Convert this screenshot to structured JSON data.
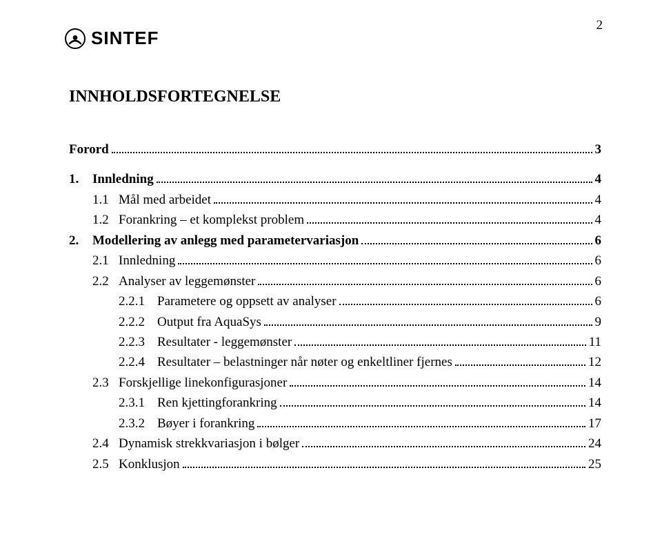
{
  "page_number_top": "2",
  "brand": {
    "name": "SINTEF"
  },
  "toc_title": "INNHOLDSFORTEGNELSE",
  "toc": [
    {
      "level": 0,
      "bold": true,
      "num": "",
      "label": "Forord",
      "page": "3",
      "extra_class": "toc-forord"
    },
    {
      "level": 0,
      "bold": true,
      "num": "1.",
      "label": "Innledning",
      "page": "4"
    },
    {
      "level": 1,
      "bold": false,
      "num": "1.1",
      "label": "Mål med arbeidet",
      "page": "4"
    },
    {
      "level": 1,
      "bold": false,
      "num": "1.2",
      "label": "Forankring – et komplekst problem",
      "page": "4"
    },
    {
      "level": 0,
      "bold": true,
      "num": "2.",
      "label": "Modellering av anlegg med parametervariasjon",
      "page": "6"
    },
    {
      "level": 1,
      "bold": false,
      "num": "2.1",
      "label": "Innledning",
      "page": "6"
    },
    {
      "level": 1,
      "bold": false,
      "num": "2.2",
      "label": "Analyser av leggemønster",
      "page": "6"
    },
    {
      "level": 2,
      "bold": false,
      "num": "2.2.1",
      "label": "Parametere og oppsett av analyser",
      "page": "6"
    },
    {
      "level": 2,
      "bold": false,
      "num": "2.2.2",
      "label": "Output fra AquaSys",
      "page": "9"
    },
    {
      "level": 2,
      "bold": false,
      "num": "2.2.3",
      "label": "Resultater - leggemønster",
      "page": "11"
    },
    {
      "level": 2,
      "bold": false,
      "num": "2.2.4",
      "label": "Resultater – belastninger når nøter og enkeltliner fjernes",
      "page": "12"
    },
    {
      "level": 1,
      "bold": false,
      "num": "2.3",
      "label": "Forskjellige linekonfigurasjoner",
      "page": "14"
    },
    {
      "level": 2,
      "bold": false,
      "num": "2.3.1",
      "label": "Ren kjettingforankring",
      "page": "14"
    },
    {
      "level": 2,
      "bold": false,
      "num": "2.3.2",
      "label": "Bøyer i forankring",
      "page": "17"
    },
    {
      "level": 1,
      "bold": false,
      "num": "2.4",
      "label": "Dynamisk strekkvariasjon i bølger",
      "page": "24"
    },
    {
      "level": 1,
      "bold": false,
      "num": "2.5",
      "label": "Konklusjon",
      "page": "25"
    }
  ]
}
